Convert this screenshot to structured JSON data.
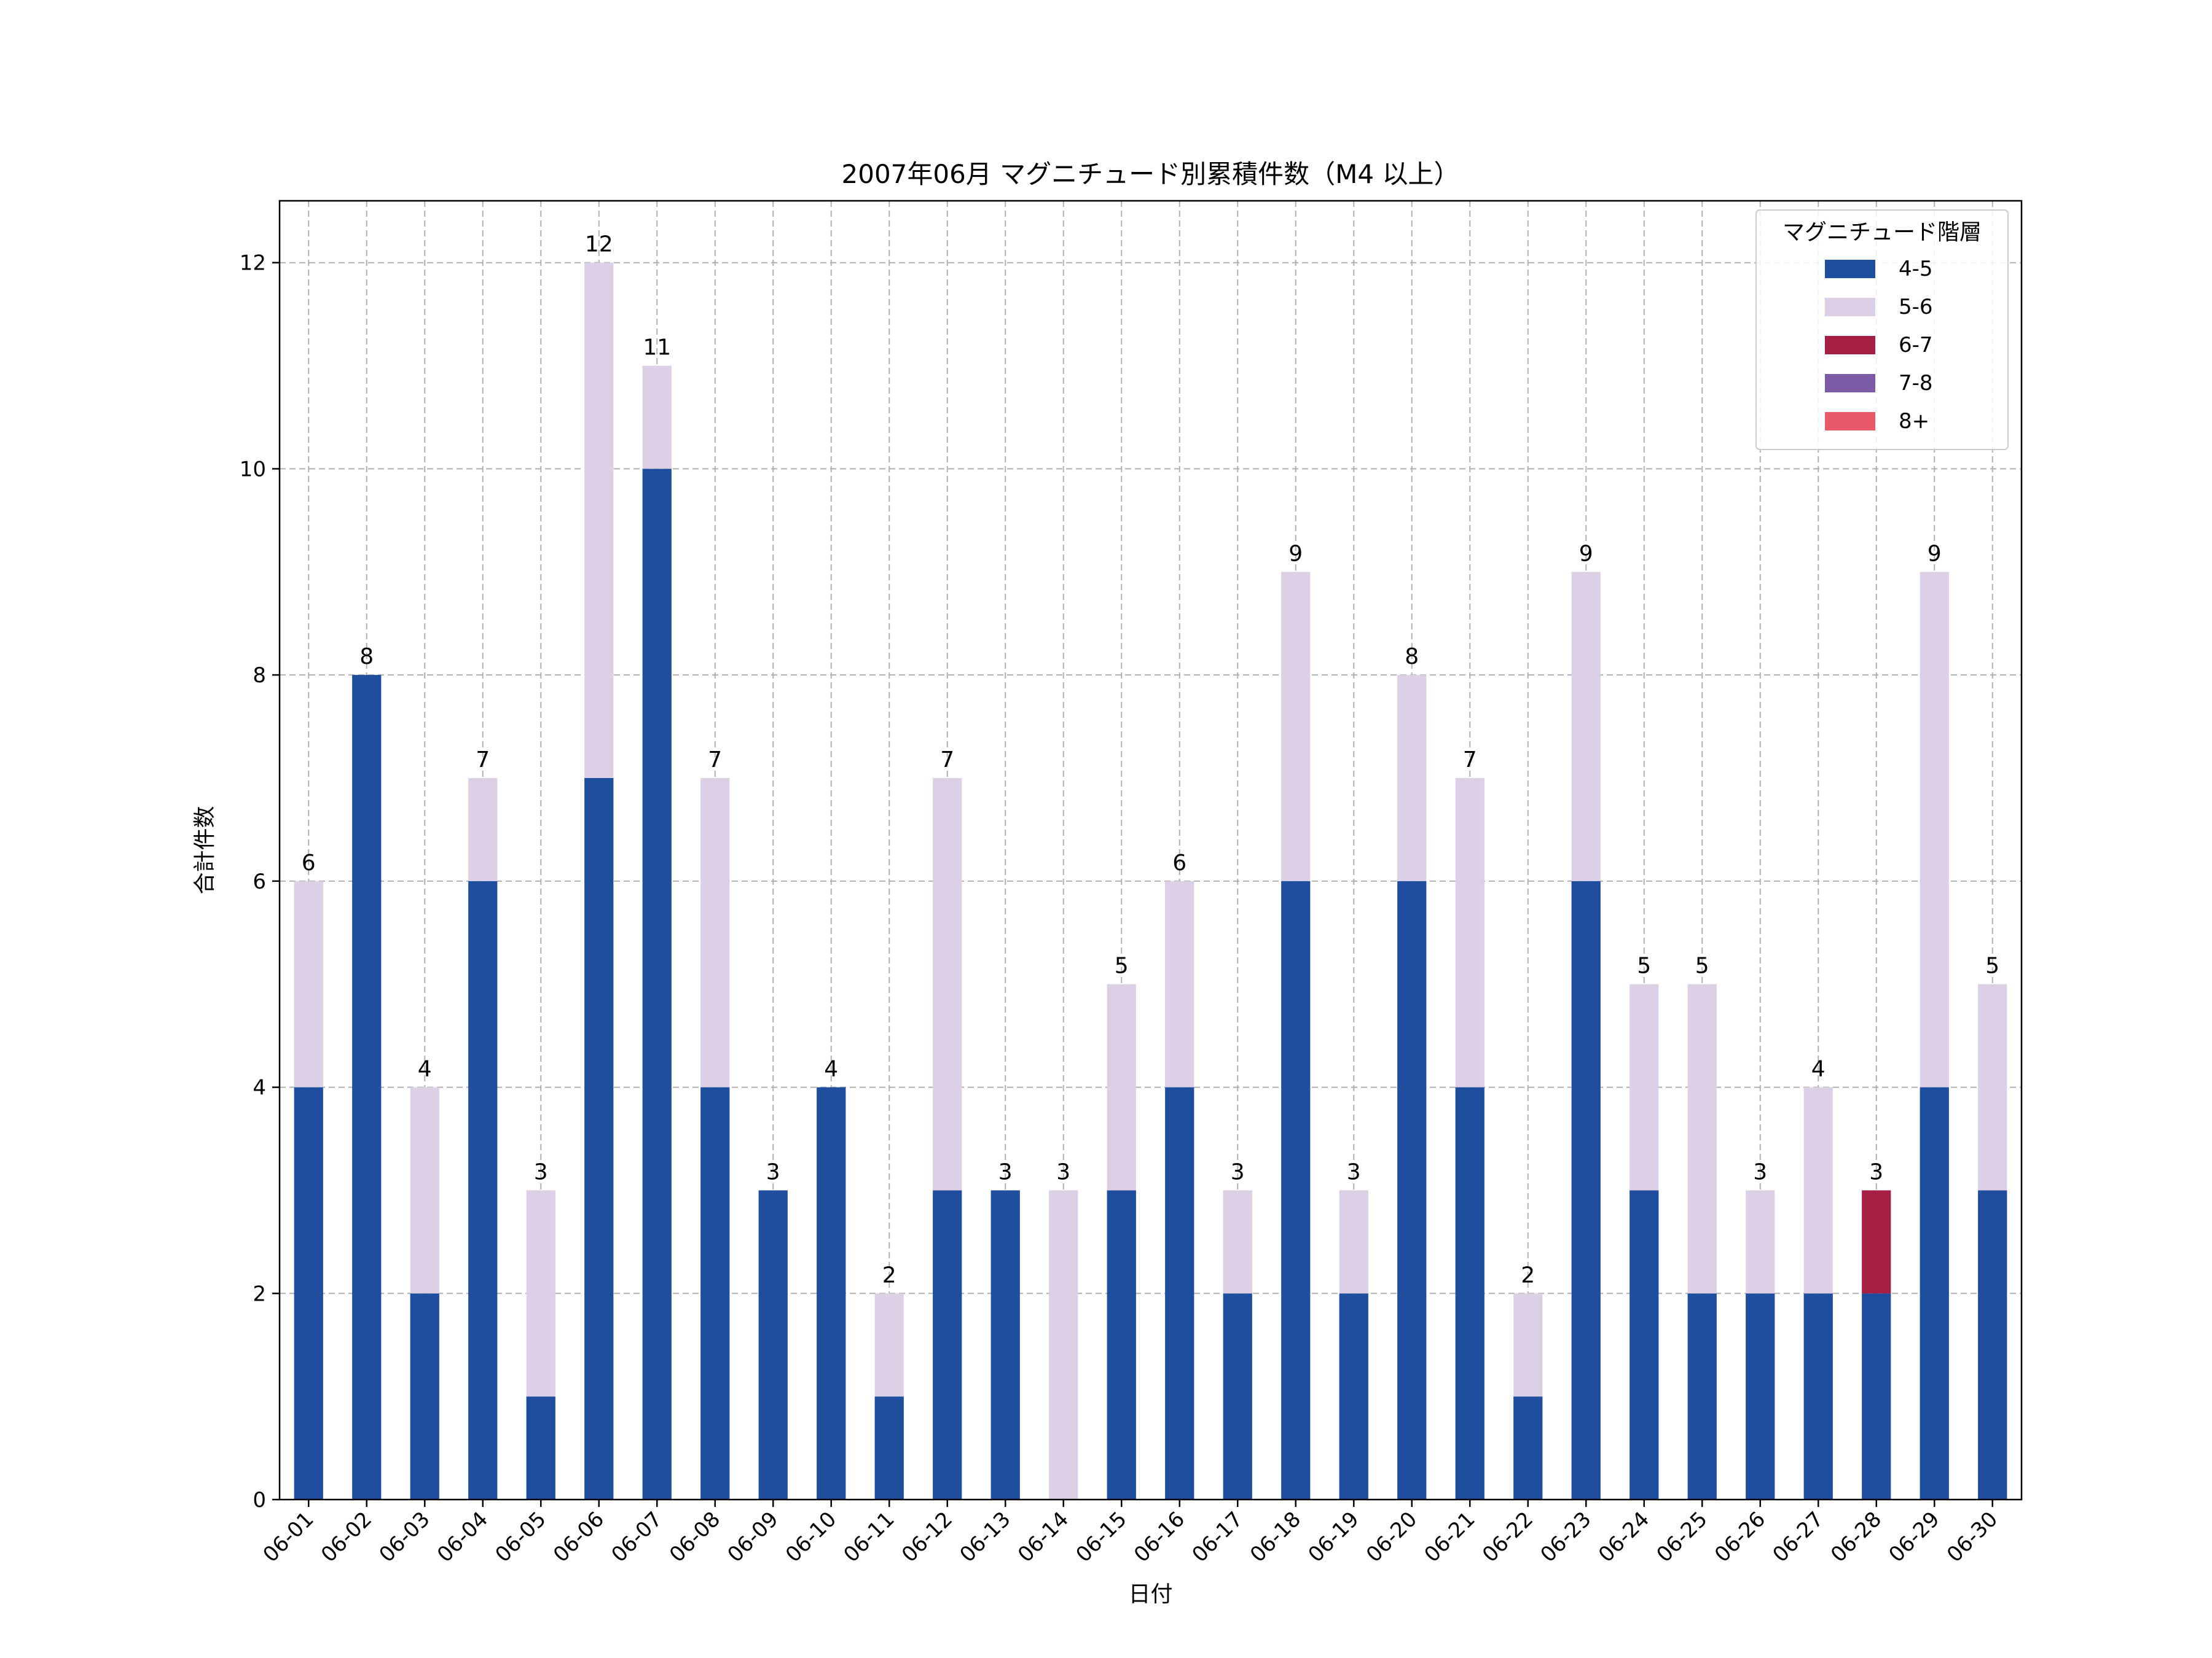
{
  "chart_data": {
    "type": "bar",
    "stacked": true,
    "title": "2007年06月 マグニチュード別累積件数（M4 以上）",
    "xlabel": "日付",
    "ylabel": "合計件数",
    "ylim": [
      0,
      12.6
    ],
    "yticks": [
      0,
      2,
      4,
      6,
      8,
      10,
      12
    ],
    "grid": true,
    "legend": {
      "title": "マグニチュード階層",
      "position": "top-right"
    },
    "categories": [
      "06-01",
      "06-02",
      "06-03",
      "06-04",
      "06-05",
      "06-06",
      "06-07",
      "06-08",
      "06-09",
      "06-10",
      "06-11",
      "06-12",
      "06-13",
      "06-14",
      "06-15",
      "06-16",
      "06-17",
      "06-18",
      "06-19",
      "06-20",
      "06-21",
      "06-22",
      "06-23",
      "06-24",
      "06-25",
      "06-26",
      "06-27",
      "06-28",
      "06-29",
      "06-30"
    ],
    "series": [
      {
        "name": "4-5",
        "color": "#1f4e9e",
        "values": [
          4,
          8,
          2,
          6,
          1,
          7,
          10,
          4,
          3,
          4,
          1,
          3,
          3,
          0,
          3,
          4,
          2,
          6,
          2,
          6,
          4,
          1,
          6,
          3,
          2,
          2,
          2,
          2,
          4,
          3
        ]
      },
      {
        "name": "5-6",
        "color": "#dbd0e6",
        "values": [
          2,
          0,
          2,
          1,
          2,
          5,
          1,
          3,
          0,
          0,
          1,
          4,
          0,
          3,
          2,
          2,
          1,
          3,
          1,
          2,
          3,
          1,
          3,
          2,
          3,
          1,
          2,
          0,
          5,
          2
        ]
      },
      {
        "name": "6-7",
        "color": "#a51f45",
        "values": [
          0,
          0,
          0,
          0,
          0,
          0,
          0,
          0,
          0,
          0,
          0,
          0,
          0,
          0,
          0,
          0,
          0,
          0,
          0,
          0,
          0,
          0,
          0,
          0,
          0,
          0,
          0,
          1,
          0,
          0
        ]
      },
      {
        "name": "7-8",
        "color": "#7b5aa6",
        "values": [
          0,
          0,
          0,
          0,
          0,
          0,
          0,
          0,
          0,
          0,
          0,
          0,
          0,
          0,
          0,
          0,
          0,
          0,
          0,
          0,
          0,
          0,
          0,
          0,
          0,
          0,
          0,
          0,
          0,
          0
        ]
      },
      {
        "name": "8+",
        "color": "#e85869",
        "values": [
          0,
          0,
          0,
          0,
          0,
          0,
          0,
          0,
          0,
          0,
          0,
          0,
          0,
          0,
          0,
          0,
          0,
          0,
          0,
          0,
          0,
          0,
          0,
          0,
          0,
          0,
          0,
          0,
          0,
          0
        ]
      }
    ],
    "totals": [
      6,
      8,
      4,
      7,
      3,
      12,
      11,
      7,
      3,
      4,
      2,
      7,
      3,
      3,
      5,
      6,
      3,
      9,
      3,
      8,
      7,
      2,
      9,
      5,
      5,
      3,
      4,
      3,
      9,
      5
    ]
  }
}
